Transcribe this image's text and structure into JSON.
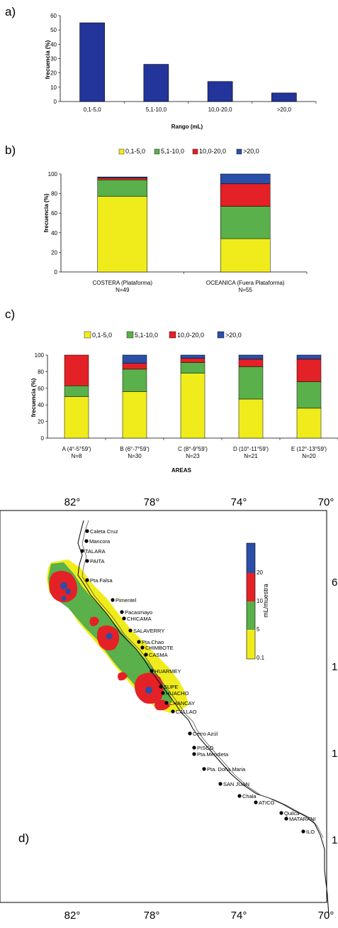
{
  "panels": {
    "a": "a)",
    "b": "b)",
    "c": "c)",
    "d": "d)"
  },
  "colors": {
    "c1": "#f0ec1c",
    "c2": "#5ab04a",
    "c3": "#e42126",
    "c4": "#2b4fa8",
    "bar_a": "#23349a"
  },
  "chart_data": [
    {
      "type": "bar",
      "categories": [
        "0,1-5,0",
        "5,1-10,0",
        "10,0-20,0",
        ">20,0"
      ],
      "values": [
        55,
        26,
        14,
        6
      ],
      "xlabel": "Rango (mL)",
      "ylabel": "frecuencia (%)",
      "ylim": [
        0,
        60
      ],
      "yticks": [
        "0",
        "10",
        "20",
        "30",
        "40",
        "50",
        "60"
      ]
    },
    {
      "type": "bar",
      "stacked": true,
      "legend": [
        "0,1-5,0",
        "5,1-10,0",
        "10,0-20,0",
        ">20,0"
      ],
      "legend_position": "top",
      "categories": [
        "COSTERA    (Plataforma)",
        "OCEANICA (Fuera Plataforma)"
      ],
      "sublabels": [
        "N=49",
        "N=55"
      ],
      "series": [
        {
          "name": "0,1-5,0",
          "values": [
            77,
            34
          ]
        },
        {
          "name": "5,1-10,0",
          "values": [
            17,
            33
          ]
        },
        {
          "name": "10,0-20,0",
          "values": [
            2,
            23
          ]
        },
        {
          "name": ">20,0",
          "values": [
            1,
            10
          ]
        }
      ],
      "ylabel": "frecuencia (%)",
      "ylim": [
        0,
        100
      ],
      "yticks": [
        "0",
        "20",
        "40",
        "60",
        "80",
        "100"
      ]
    },
    {
      "type": "bar",
      "stacked": true,
      "legend": [
        "0,1-5,0",
        "5,1-10,0",
        "10,0-20,0",
        ">20,0"
      ],
      "legend_position": "top",
      "categories": [
        "A (4°-5°59')",
        "B (6°-7°59')",
        "C (8°-9°59')",
        "D (10°-11°59')",
        "E (12°-13°59')"
      ],
      "sublabels": [
        "N=8",
        "N=30",
        "N=23",
        "N=21",
        "N=20"
      ],
      "series": [
        {
          "name": "0,1-5,0",
          "values": [
            50,
            56,
            78,
            47,
            36
          ]
        },
        {
          "name": "5,1-10,0",
          "values": [
            13,
            27,
            13,
            39,
            32
          ]
        },
        {
          "name": "10,0-20,0",
          "values": [
            37,
            7,
            5,
            9,
            27
          ]
        },
        {
          "name": ">20,0",
          "values": [
            0,
            10,
            4,
            5,
            5
          ]
        }
      ],
      "xlabel": "AREAS",
      "ylabel": "frecuencia (%)",
      "ylim": [
        0,
        100
      ],
      "yticks": [
        "0",
        "20",
        "40",
        "60",
        "80",
        "100"
      ]
    },
    {
      "type": "heatmap",
      "lon_labels": [
        "82°",
        "78°",
        "74°",
        "70°"
      ],
      "lat_labels_partial": [
        "6",
        "1",
        "1",
        "1"
      ],
      "colorbar_label": "mL/muestra",
      "colorbar_ticks": [
        "20",
        "10",
        "5",
        "0.1"
      ],
      "places": [
        "Caleta Cruz",
        "Mancora",
        "TALARA",
        "PAITA",
        "Pta.Falsa",
        "Pimentel",
        "Pacasmayo",
        "CHICAMA",
        "SALAVERRY",
        "Pta.Chao",
        "CHIMBOTE",
        "CASMA",
        "HUARMEY",
        "SUPE",
        "HUACHO",
        "CHANCAY",
        "CALLAO",
        "Cerro Azúl",
        "PISCO",
        "Pta.Mendieta",
        "Pta. Doña Maria",
        "SAN JUAN",
        "Chala",
        "ATICO",
        "Quilca",
        "MATARANI",
        "ILO"
      ]
    }
  ]
}
